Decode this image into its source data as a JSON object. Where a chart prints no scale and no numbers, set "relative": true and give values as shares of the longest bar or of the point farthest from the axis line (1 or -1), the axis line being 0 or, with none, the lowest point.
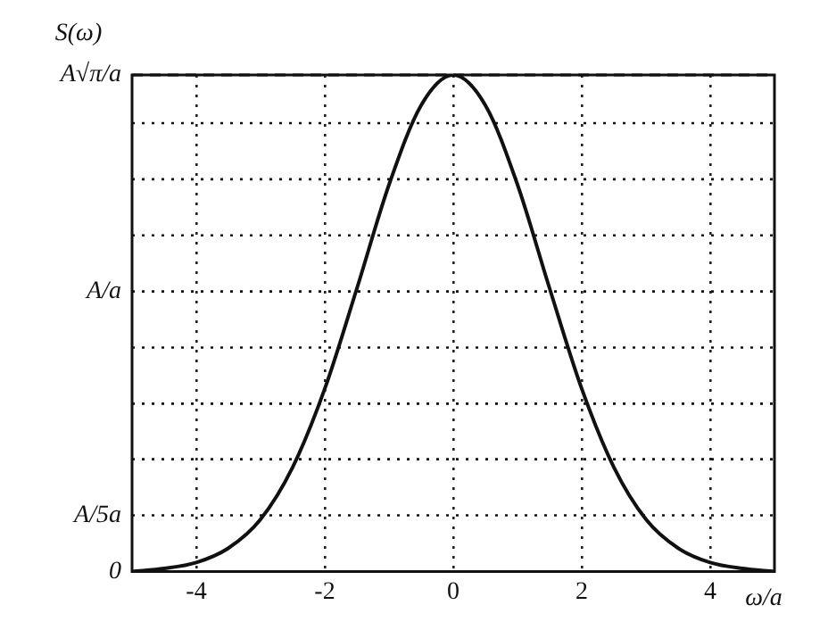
{
  "chart_data": {
    "type": "line",
    "xlabel": "ω/a",
    "ylabel": "S(ω)",
    "relative": true,
    "x": [
      -5,
      -4.5,
      -4,
      -3.5,
      -3,
      -2.5,
      -2,
      -1.5,
      -1,
      -0.5,
      0,
      0.5,
      1,
      1.5,
      2,
      2.5,
      3,
      3.5,
      4,
      4.5,
      5
    ],
    "series": [
      {
        "color": "#111111",
        "values": [
          0.0,
          0.006,
          0.018,
          0.047,
          0.105,
          0.21,
          0.368,
          0.57,
          0.779,
          0.939,
          1,
          0.939,
          0.779,
          0.57,
          0.368,
          0.21,
          0.105,
          0.047,
          0.018,
          0.006,
          0.0
        ]
      }
    ],
    "xlim": [
      -5,
      5
    ],
    "xticks": [
      -4,
      -2,
      0,
      2,
      4
    ],
    "annotations": [
      "0"
    ],
    "ref_lines": [
      {
        "axis": "y",
        "value": 0.113,
        "label": "A/5a",
        "line_style": "dotted"
      },
      {
        "axis": "y",
        "value": 0.226,
        "line_style": "dotted"
      },
      {
        "axis": "y",
        "value": 0.338,
        "line_style": "dotted"
      },
      {
        "axis": "y",
        "value": 0.451,
        "line_style": "dotted"
      },
      {
        "axis": "y",
        "value": 0.564,
        "label": "A/a",
        "line_style": "dotted"
      },
      {
        "axis": "y",
        "value": 0.677,
        "line_style": "dotted"
      },
      {
        "axis": "y",
        "value": 0.79,
        "line_style": "dotted"
      },
      {
        "axis": "y",
        "value": 0.903,
        "line_style": "dotted"
      },
      {
        "axis": "y",
        "value": 1,
        "label": "A√π/a",
        "line_style": "dashed"
      }
    ],
    "grid": "x",
    "legend": false,
    "marker": "none",
    "line_style": "solid"
  }
}
